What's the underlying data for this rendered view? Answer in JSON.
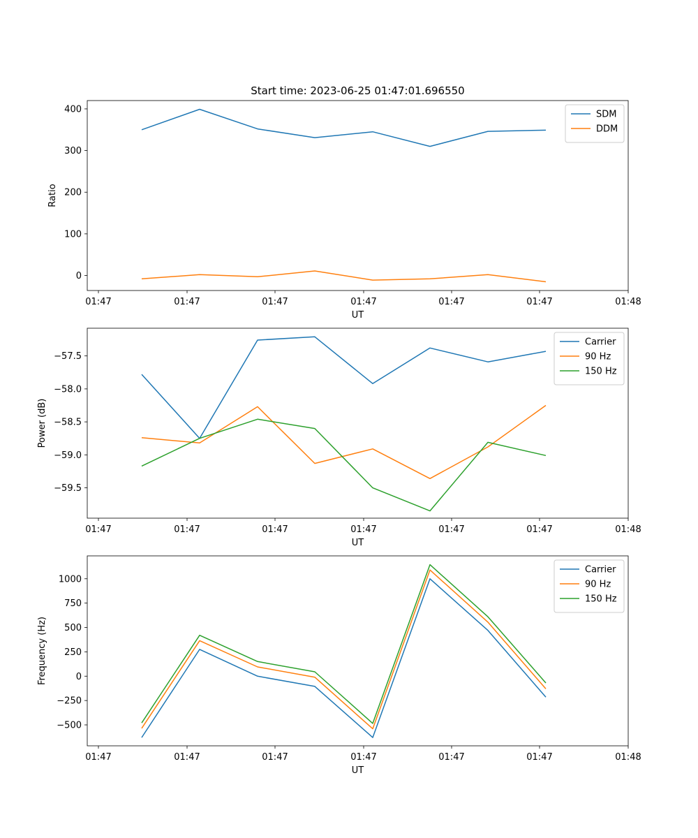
{
  "figure_title": "Start time: 2023-06-25 01:47:01.696550",
  "chart_data": [
    {
      "type": "line",
      "title": "Start time: 2023-06-25 01:47:01.696550",
      "xlabel": "UT",
      "ylabel": "Ratio",
      "x_tick_labels": [
        "01:47",
        "01:47",
        "01:47",
        "01:47",
        "01:47",
        "01:47",
        "01:48"
      ],
      "y_ticks": [
        0,
        100,
        200,
        300,
        400
      ],
      "ylim": [
        -36,
        420
      ],
      "legend_position": "top-right",
      "series": [
        {
          "name": "SDM",
          "color": "#1f77b4",
          "values": [
            350,
            399,
            352,
            331,
            345,
            310,
            346,
            349
          ]
        },
        {
          "name": "DDM",
          "color": "#ff7f0e",
          "values": [
            -8,
            2,
            -3,
            11,
            -11,
            -8,
            2,
            -15
          ]
        }
      ]
    },
    {
      "type": "line",
      "xlabel": "UT",
      "ylabel": "Power (dB)",
      "x_tick_labels": [
        "01:47",
        "01:47",
        "01:47",
        "01:47",
        "01:47",
        "01:47",
        "01:48"
      ],
      "y_ticks": [
        -59.5,
        -59.0,
        -58.5,
        -58.0,
        -57.5
      ],
      "y_tick_labels": [
        "−59.5",
        "−59.0",
        "−58.5",
        "−58.0",
        "−57.5"
      ],
      "ylim": [
        -59.96,
        -57.08
      ],
      "legend_position": "top-right",
      "series": [
        {
          "name": "Carrier",
          "color": "#1f77b4",
          "values": [
            -57.78,
            -58.75,
            -57.26,
            -57.21,
            -57.92,
            -57.38,
            -57.59,
            -57.43
          ]
        },
        {
          "name": "90 Hz",
          "color": "#ff7f0e",
          "values": [
            -58.74,
            -58.82,
            -58.27,
            -59.13,
            -58.91,
            -59.36,
            -58.88,
            -58.25
          ]
        },
        {
          "name": "150 Hz",
          "color": "#2ca02c",
          "values": [
            -59.17,
            -58.75,
            -58.46,
            -58.6,
            -59.5,
            -59.85,
            -58.81,
            -59.01
          ]
        }
      ]
    },
    {
      "type": "line",
      "xlabel": "UT",
      "ylabel": "Frequency (Hz)",
      "x_tick_labels": [
        "01:47",
        "01:47",
        "01:47",
        "01:47",
        "01:47",
        "01:47",
        "01:48"
      ],
      "y_ticks": [
        -500,
        -250,
        0,
        250,
        500,
        750,
        1000
      ],
      "y_tick_labels": [
        "−500",
        "−250",
        "0",
        "250",
        "500",
        "750",
        "1000"
      ],
      "ylim": [
        -715,
        1235
      ],
      "legend_position": "top-right",
      "series": [
        {
          "name": "Carrier",
          "color": "#1f77b4",
          "values": [
            -630,
            275,
            0,
            -105,
            -630,
            1000,
            470,
            -215
          ]
        },
        {
          "name": "90 Hz",
          "color": "#ff7f0e",
          "values": [
            -535,
            365,
            95,
            -10,
            -540,
            1090,
            555,
            -130
          ]
        },
        {
          "name": "150 Hz",
          "color": "#2ca02c",
          "values": [
            -480,
            420,
            150,
            45,
            -485,
            1145,
            610,
            -70
          ]
        }
      ]
    }
  ]
}
